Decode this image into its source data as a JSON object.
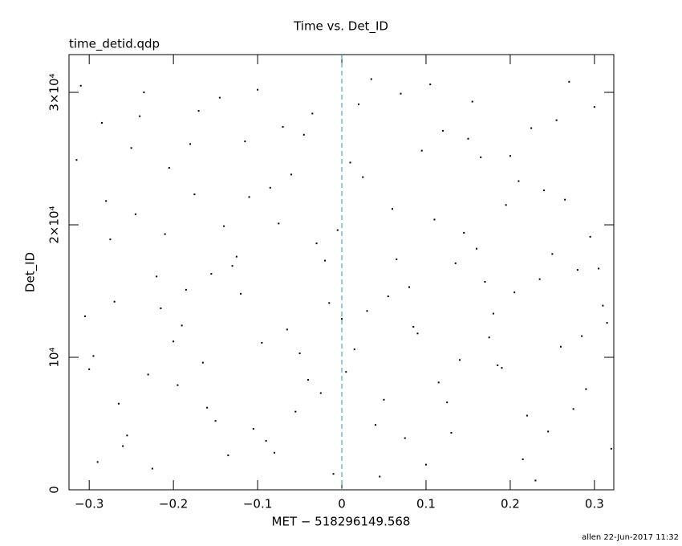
{
  "chart_data": {
    "type": "scatter",
    "title": "Time vs. Det_ID",
    "subtitle": "time_detid.qdp",
    "x_label": "MET − 518296149.568",
    "y_label": "Det_ID",
    "footer": "allen 22-Jun-2017 11:32",
    "color": "#000000",
    "vline": {
      "value": 0,
      "color": "#2a9bb0"
    },
    "grid": false,
    "xlim": [
      -0.324,
      0.323
    ],
    "ylim": [
      0,
      32850
    ],
    "xticks": [
      {
        "value": -0.3,
        "label": "−0.3"
      },
      {
        "value": -0.2,
        "label": "−0.2"
      },
      {
        "value": -0.1,
        "label": "−0.1"
      },
      0,
      0.1,
      0.2,
      0.3
    ],
    "yticks": [
      0,
      {
        "value": 10000,
        "label": "10⁴"
      },
      {
        "value": 20000,
        "label": "2×10⁴"
      },
      {
        "value": 30000,
        "label": "3×10⁴"
      }
    ],
    "x": [
      -0.31,
      -0.29,
      -0.27,
      -0.25,
      -0.23,
      -0.21,
      -0.19,
      -0.17,
      -0.15,
      -0.13,
      -0.11,
      -0.09,
      -0.07,
      -0.05,
      -0.03,
      -0.01,
      0.01,
      0.03,
      0.05,
      0.07,
      0.09,
      0.11,
      0.13,
      0.15,
      0.17,
      0.19,
      0.21,
      0.23,
      0.25,
      0.27,
      0.29,
      0.31,
      -0.3,
      -0.28,
      -0.26,
      -0.24,
      -0.22,
      -0.2,
      -0.18,
      -0.16,
      -0.14,
      -0.12,
      -0.1,
      -0.08,
      -0.06,
      -0.04,
      -0.02,
      0,
      0.02,
      0.04,
      0.06,
      0.08,
      0.1,
      0.12,
      0.14,
      0.16,
      0.18,
      0.2,
      0.22,
      0.24,
      0.26,
      0.28,
      0.3,
      0.32,
      -0.305,
      -0.285,
      -0.265,
      -0.245,
      -0.225,
      -0.205,
      -0.185,
      -0.165,
      -0.145,
      -0.125,
      -0.105,
      -0.085,
      -0.065,
      -0.045,
      -0.025,
      -0.005,
      0.015,
      0.035,
      0.055,
      0.075,
      0.095,
      0.115,
      0.135,
      0.155,
      0.175,
      0.195,
      0.215,
      0.235,
      0.255,
      0.275,
      0.295,
      0.315,
      -0.315,
      -0.295,
      -0.275,
      -0.255,
      -0.235,
      -0.215,
      -0.195,
      -0.175,
      -0.155,
      -0.135,
      -0.115,
      -0.095,
      -0.075,
      -0.055,
      -0.035,
      -0.015,
      0.005,
      0.025,
      0.045,
      0.065,
      0.085,
      0.105,
      0.125,
      0.145,
      0.165,
      0.185,
      0.205,
      0.225,
      0.245,
      0.265,
      0.285,
      0.305
    ],
    "values": [
      30500,
      2100,
      14200,
      25800,
      8700,
      19300,
      12400,
      28600,
      5200,
      16900,
      22100,
      3700,
      27400,
      10300,
      18600,
      1200,
      24700,
      13500,
      6800,
      29900,
      11800,
      20400,
      4300,
      26500,
      15700,
      9200,
      23300,
      700,
      17800,
      30800,
      7600,
      13900,
      9100,
      21800,
      3300,
      28200,
      16100,
      11200,
      26100,
      6200,
      19900,
      14800,
      30200,
      2800,
      23800,
      8300,
      17300,
      12900,
      29100,
      4900,
      21200,
      15300,
      1900,
      27100,
      9800,
      18200,
      13300,
      25200,
      5600,
      22600,
      10800,
      16600,
      28900,
      3100,
      13100,
      27700,
      6500,
      20800,
      1600,
      24300,
      15100,
      9600,
      29600,
      17600,
      4600,
      22800,
      12100,
      26800,
      7300,
      19600,
      10600,
      31000,
      14600,
      3900,
      25600,
      8100,
      17100,
      29300,
      11500,
      21500,
      2300,
      15900,
      27900,
      6100,
      19100,
      12600,
      24900,
      10100,
      18900,
      4100,
      30000,
      13700,
      7900,
      22300,
      16300,
      2600,
      26300,
      11100,
      20100,
      5900,
      28400,
      14100,
      8900,
      23600,
      1000,
      17400,
      12300,
      30600,
      6600,
      19400,
      25100,
      9400,
      14900,
      27300,
      4400,
      21900,
      11600,
      16700
    ]
  }
}
